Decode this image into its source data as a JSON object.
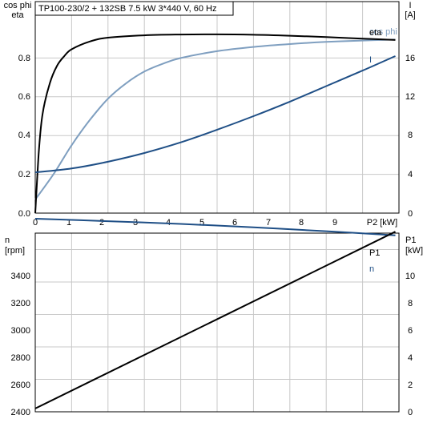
{
  "chart_data": [
    {
      "type": "line",
      "title": "TP100-230/2 + 132SB   7.5 kW   3*440 V, 60 Hz",
      "xlabel": "P2 [kW]",
      "ylabel_left": [
        "cos phi",
        "eta"
      ],
      "ylabel_right": [
        "I",
        "[A]"
      ],
      "xlim": [
        0,
        10
      ],
      "ylim_left": [
        0,
        1.0
      ],
      "ylim_right": [
        0,
        20
      ],
      "x_ticks": [
        "0",
        "1",
        "2",
        "3",
        "4",
        "5",
        "6",
        "7",
        "8",
        "9"
      ],
      "y_left_ticks": [
        "0.0",
        "0.2",
        "0.4",
        "0.6",
        "0.8"
      ],
      "y_right_ticks": [
        "0",
        "4",
        "8",
        "12",
        "16"
      ],
      "grid": true,
      "series": [
        {
          "name": "eta",
          "axis": "left",
          "color": "#000000",
          "x": [
            0,
            0.1,
            0.2,
            0.4,
            0.6,
            0.8,
            1.0,
            1.5,
            2,
            3,
            4,
            5,
            6,
            7,
            8,
            9,
            9.9
          ],
          "y": [
            0.0,
            0.32,
            0.51,
            0.67,
            0.76,
            0.81,
            0.845,
            0.885,
            0.905,
            0.917,
            0.921,
            0.922,
            0.92,
            0.915,
            0.908,
            0.9,
            0.893
          ]
        },
        {
          "name": "cos phi",
          "axis": "left",
          "color": "#7f9fc0",
          "x": [
            0,
            0.5,
            1,
            1.5,
            2,
            2.5,
            3,
            3.5,
            4,
            5,
            6,
            7,
            8,
            9,
            9.9
          ],
          "y": [
            0.07,
            0.2,
            0.35,
            0.48,
            0.59,
            0.67,
            0.73,
            0.77,
            0.8,
            0.835,
            0.857,
            0.872,
            0.883,
            0.89,
            0.895
          ]
        },
        {
          "name": "I",
          "axis": "right",
          "color": "#1f4f86",
          "x": [
            0,
            1,
            2,
            3,
            4,
            5,
            6,
            7,
            8,
            9,
            9.9
          ],
          "y": [
            4.2,
            4.6,
            5.3,
            6.2,
            7.3,
            8.6,
            10.0,
            11.5,
            13.1,
            14.7,
            16.2
          ]
        }
      ]
    },
    {
      "type": "line",
      "xlabel": "",
      "ylabel_left": [
        "n",
        "[rpm]"
      ],
      "ylabel_right": [
        "P1",
        "[kW]"
      ],
      "xlim": [
        0,
        10
      ],
      "ylim_left": [
        2400,
        3600
      ],
      "ylim_right": [
        0,
        12
      ],
      "y_left_ticks": [
        "2400",
        "2600",
        "2800",
        "3000",
        "3200",
        "3400"
      ],
      "y_right_ticks": [
        "0",
        "2",
        "4",
        "6",
        "8",
        "10"
      ],
      "grid": true,
      "series": [
        {
          "name": "n",
          "axis": "left",
          "color": "#1f4f86",
          "x": [
            0,
            2,
            4,
            6,
            8,
            9.9
          ],
          "y": [
            3590,
            3575,
            3558,
            3537,
            3513,
            3488
          ]
        },
        {
          "name": "P1",
          "axis": "right",
          "color": "#000000",
          "x": [
            0,
            9.9
          ],
          "y": [
            0.2,
            11.1
          ]
        }
      ]
    }
  ]
}
